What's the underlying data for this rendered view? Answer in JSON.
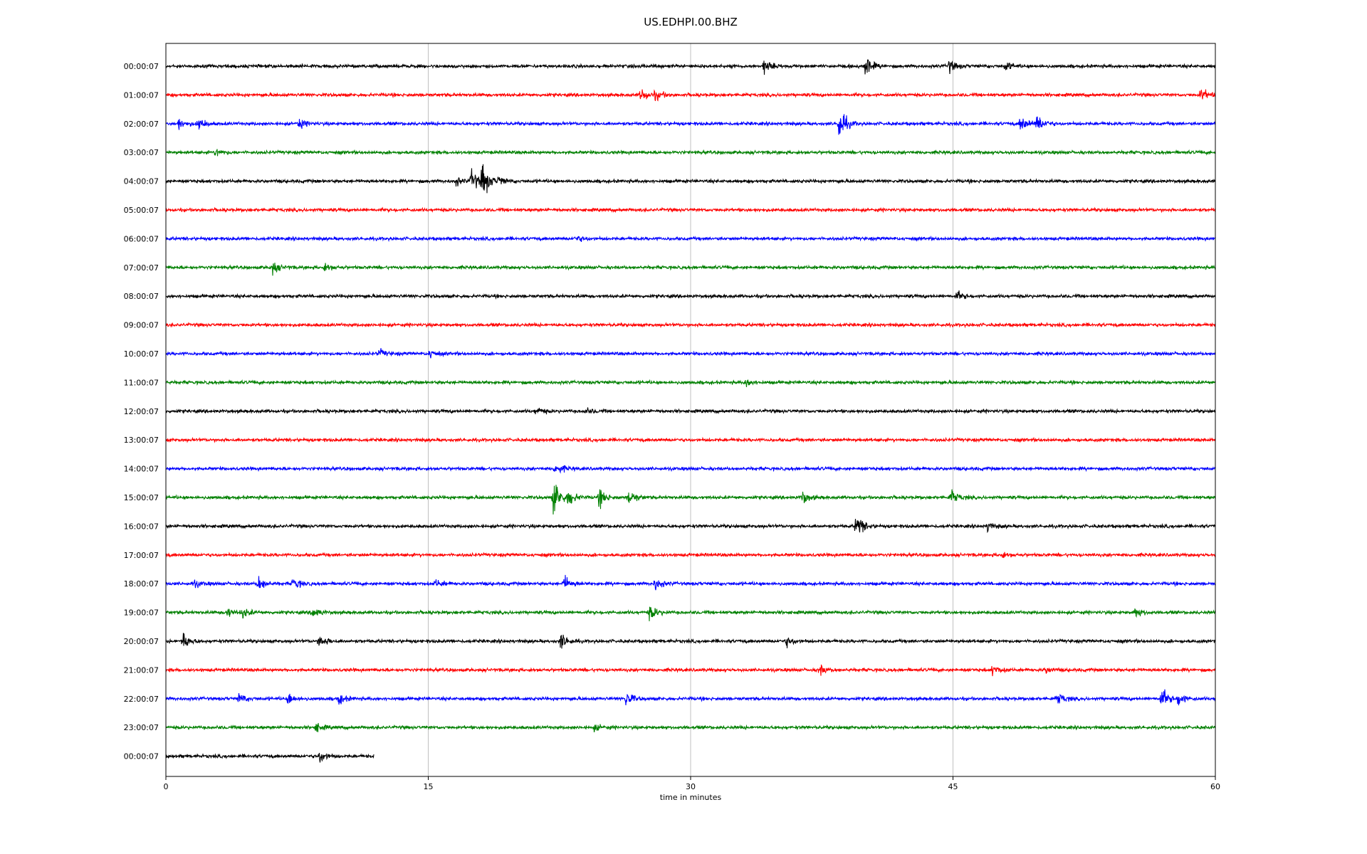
{
  "chart_data": {
    "type": "line",
    "title": "US.EDHPI.00.BHZ",
    "xlabel": "time in minutes",
    "ylabel": "",
    "xlim": [
      0,
      60
    ],
    "x_ticks": [
      0,
      15,
      30,
      45,
      60
    ],
    "x_tick_labels": [
      "0",
      "15",
      "30",
      "45",
      "60"
    ],
    "grid": "vertical lines at x ticks",
    "line_colors": [
      "#000000",
      "#ff0000",
      "#0000ff",
      "#008000"
    ],
    "series": [
      {
        "label": "00:00:07",
        "color": "#000000",
        "end_minute": 60,
        "events": [
          [
            34.2,
            14
          ],
          [
            40.0,
            22
          ],
          [
            44.8,
            12
          ],
          [
            48.0,
            10
          ]
        ]
      },
      {
        "label": "01:00:07",
        "color": "#ff0000",
        "end_minute": 60,
        "events": [
          [
            27.2,
            14
          ],
          [
            28.0,
            10
          ],
          [
            59.2,
            12
          ]
        ]
      },
      {
        "label": "02:00:07",
        "color": "#0000ff",
        "end_minute": 60,
        "events": [
          [
            0.7,
            12
          ],
          [
            1.9,
            12
          ],
          [
            7.6,
            10
          ],
          [
            38.5,
            34
          ],
          [
            48.9,
            18
          ],
          [
            49.8,
            20
          ]
        ]
      },
      {
        "label": "03:00:07",
        "color": "#008000",
        "end_minute": 60,
        "events": [
          [
            2.9,
            8
          ]
        ]
      },
      {
        "label": "04:00:07",
        "color": "#000000",
        "end_minute": 60,
        "events": [
          [
            16.6,
            8
          ],
          [
            17.5,
            22
          ],
          [
            18.1,
            38
          ],
          [
            19.0,
            10
          ]
        ]
      },
      {
        "label": "05:00:07",
        "color": "#ff0000",
        "end_minute": 60,
        "events": []
      },
      {
        "label": "06:00:07",
        "color": "#0000ff",
        "end_minute": 60,
        "events": [
          [
            23.5,
            6
          ]
        ]
      },
      {
        "label": "07:00:07",
        "color": "#008000",
        "end_minute": 60,
        "events": [
          [
            6.1,
            12
          ],
          [
            9.1,
            8
          ]
        ]
      },
      {
        "label": "08:00:07",
        "color": "#000000",
        "end_minute": 60,
        "events": [
          [
            45.2,
            10
          ]
        ]
      },
      {
        "label": "09:00:07",
        "color": "#ff0000",
        "end_minute": 60,
        "events": []
      },
      {
        "label": "10:00:07",
        "color": "#0000ff",
        "end_minute": 60,
        "events": [
          [
            12.2,
            8
          ],
          [
            15.1,
            8
          ]
        ]
      },
      {
        "label": "11:00:07",
        "color": "#008000",
        "end_minute": 60,
        "events": [
          [
            33.2,
            8
          ]
        ]
      },
      {
        "label": "12:00:07",
        "color": "#000000",
        "end_minute": 60,
        "events": [
          [
            21.2,
            8
          ],
          [
            24.0,
            6
          ]
        ]
      },
      {
        "label": "13:00:07",
        "color": "#ff0000",
        "end_minute": 60,
        "events": []
      },
      {
        "label": "14:00:07",
        "color": "#0000ff",
        "end_minute": 60,
        "events": [
          [
            22.3,
            14
          ]
        ]
      },
      {
        "label": "15:00:07",
        "color": "#008000",
        "end_minute": 60,
        "events": [
          [
            22.2,
            40
          ],
          [
            23.0,
            18
          ],
          [
            24.8,
            18
          ],
          [
            26.5,
            16
          ],
          [
            36.4,
            14
          ],
          [
            44.9,
            16
          ]
        ]
      },
      {
        "label": "16:00:07",
        "color": "#000000",
        "end_minute": 60,
        "events": [
          [
            39.5,
            26
          ],
          [
            47.0,
            10
          ]
        ]
      },
      {
        "label": "17:00:07",
        "color": "#ff0000",
        "end_minute": 60,
        "events": [
          [
            47.8,
            6
          ]
        ]
      },
      {
        "label": "18:00:07",
        "color": "#0000ff",
        "end_minute": 60,
        "events": [
          [
            1.6,
            8
          ],
          [
            5.3,
            14
          ],
          [
            7.3,
            12
          ],
          [
            15.4,
            8
          ],
          [
            22.8,
            14
          ],
          [
            28.0,
            12
          ]
        ]
      },
      {
        "label": "19:00:07",
        "color": "#008000",
        "end_minute": 60,
        "events": [
          [
            3.5,
            10
          ],
          [
            4.4,
            10
          ],
          [
            8.4,
            12
          ],
          [
            27.7,
            16
          ],
          [
            55.4,
            10
          ]
        ]
      },
      {
        "label": "20:00:07",
        "color": "#000000",
        "end_minute": 60,
        "events": [
          [
            1.0,
            16
          ],
          [
            8.8,
            14
          ],
          [
            22.6,
            16
          ],
          [
            35.5,
            10
          ]
        ]
      },
      {
        "label": "21:00:07",
        "color": "#ff0000",
        "end_minute": 60,
        "events": [
          [
            37.4,
            10
          ],
          [
            47.3,
            10
          ],
          [
            50.3,
            6
          ]
        ]
      },
      {
        "label": "22:00:07",
        "color": "#0000ff",
        "end_minute": 60,
        "events": [
          [
            4.2,
            10
          ],
          [
            7.0,
            12
          ],
          [
            9.9,
            10
          ],
          [
            26.3,
            16
          ],
          [
            51.0,
            12
          ],
          [
            56.9,
            24
          ],
          [
            57.9,
            14
          ]
        ]
      },
      {
        "label": "23:00:07",
        "color": "#008000",
        "end_minute": 60,
        "events": [
          [
            8.6,
            8
          ],
          [
            24.5,
            6
          ]
        ]
      },
      {
        "label": "00:00:07",
        "color": "#000000",
        "end_minute": 11.9,
        "events": [
          [
            8.8,
            12
          ]
        ]
      }
    ]
  }
}
